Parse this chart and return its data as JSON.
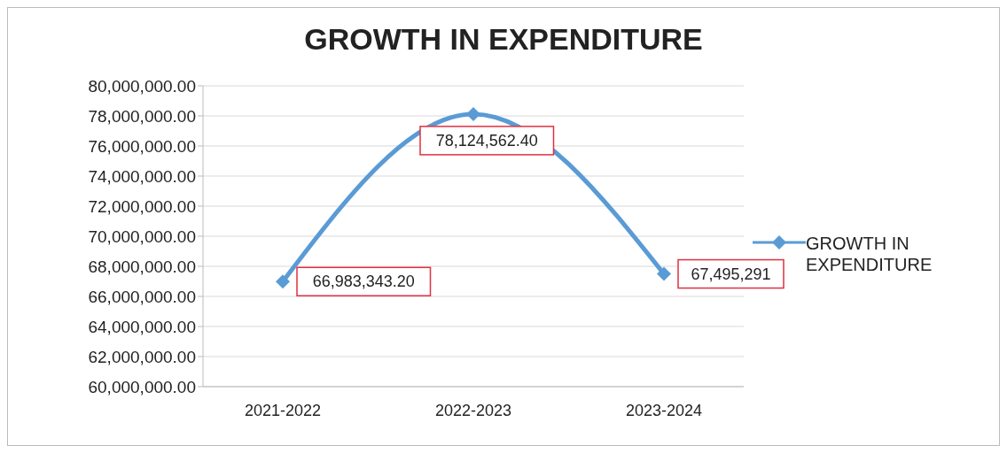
{
  "chart_data": {
    "type": "line",
    "title": "GROWTH IN EXPENDITURE",
    "categories": [
      "2021-2022",
      "2022-2023",
      "2023-2024"
    ],
    "series": [
      {
        "name": "GROWTH IN EXPENDITURE",
        "color": "#5b9bd5",
        "values": [
          66983343.2,
          78124562.4,
          67495291
        ],
        "value_labels": [
          "66,983,343.20",
          "78,124,562.40",
          "67,495,291"
        ]
      }
    ],
    "ylim": [
      60000000,
      80000000
    ],
    "yticks": [
      {
        "value": 60000000,
        "label": "60,000,000.00"
      },
      {
        "value": 62000000,
        "label": "62,000,000.00"
      },
      {
        "value": 64000000,
        "label": "64,000,000.00"
      },
      {
        "value": 66000000,
        "label": "66,000,000.00"
      },
      {
        "value": 68000000,
        "label": "68,000,000.00"
      },
      {
        "value": 70000000,
        "label": "70,000,000.00"
      },
      {
        "value": 72000000,
        "label": "72,000,000.00"
      },
      {
        "value": 74000000,
        "label": "74,000,000.00"
      },
      {
        "value": 76000000,
        "label": "76,000,000.00"
      },
      {
        "value": 78000000,
        "label": "78,000,000.00"
      },
      {
        "value": 80000000,
        "label": "80,000,000.00"
      }
    ],
    "grid": "y",
    "legend": "right",
    "marker": "diamond",
    "line_style": "solid"
  }
}
